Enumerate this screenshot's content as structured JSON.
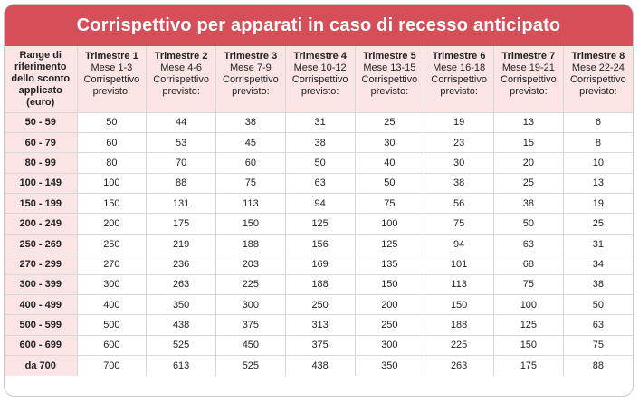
{
  "title": "Corrispettivo per apparati in caso di recesso anticipato",
  "range_header": [
    "Range di",
    "riferimento",
    "dello sconto",
    "applicato",
    "(euro)"
  ],
  "quarters": [
    {
      "name": "Trimestre 1",
      "months": "Mese 1-3",
      "l1": "Corrispettivo",
      "l2": "previsto:"
    },
    {
      "name": "Trimestre 2",
      "months": "Mese 4-6",
      "l1": "Corrispettivo",
      "l2": "previsto:"
    },
    {
      "name": "Trimestre 3",
      "months": "Mese 7-9",
      "l1": "Corrispettivo",
      "l2": "previsto:"
    },
    {
      "name": "Trimestre 4",
      "months": "Mese 10-12",
      "l1": "Corrispettivo",
      "l2": "previsto:"
    },
    {
      "name": "Trimestre 5",
      "months": "Mese 13-15",
      "l1": "Corrispettivo",
      "l2": "previsto:"
    },
    {
      "name": "Trimestre 6",
      "months": "Mese 16-18",
      "l1": "Corrispettivo",
      "l2": "previsto:"
    },
    {
      "name": "Trimestre 7",
      "months": "Mese 19-21",
      "l1": "Corrispettivo",
      "l2": "previsto:"
    },
    {
      "name": "Trimestre 8",
      "months": "Mese 22-24",
      "l1": "Corrispettivo",
      "l2": "previsto:"
    }
  ],
  "rows": [
    {
      "range": "50 - 59",
      "values": [
        "50",
        "44",
        "38",
        "31",
        "25",
        "19",
        "13",
        "6"
      ]
    },
    {
      "range": "60 - 79",
      "values": [
        "60",
        "53",
        "45",
        "38",
        "30",
        "23",
        "15",
        "8"
      ]
    },
    {
      "range": "80 - 99",
      "values": [
        "80",
        "70",
        "60",
        "50",
        "40",
        "30",
        "20",
        "10"
      ]
    },
    {
      "range": "100 - 149",
      "values": [
        "100",
        "88",
        "75",
        "63",
        "50",
        "38",
        "25",
        "13"
      ]
    },
    {
      "range": "150 - 199",
      "values": [
        "150",
        "131",
        "113",
        "94",
        "75",
        "56",
        "38",
        "19"
      ]
    },
    {
      "range": "200 - 249",
      "values": [
        "200",
        "175",
        "150",
        "125",
        "100",
        "75",
        "50",
        "25"
      ]
    },
    {
      "range": "250 - 269",
      "values": [
        "250",
        "219",
        "188",
        "156",
        "125",
        "94",
        "63",
        "31"
      ]
    },
    {
      "range": "270 - 299",
      "values": [
        "270",
        "236",
        "203",
        "169",
        "135",
        "101",
        "68",
        "34"
      ]
    },
    {
      "range": "300 - 399",
      "values": [
        "300",
        "263",
        "225",
        "188",
        "150",
        "113",
        "75",
        "38"
      ]
    },
    {
      "range": "400 - 499",
      "values": [
        "400",
        "350",
        "300",
        "250",
        "200",
        "150",
        "100",
        "50"
      ]
    },
    {
      "range": "500 - 599",
      "values": [
        "500",
        "438",
        "375",
        "313",
        "250",
        "188",
        "125",
        "63"
      ]
    },
    {
      "range": "600 - 699",
      "values": [
        "600",
        "525",
        "450",
        "375",
        "300",
        "225",
        "150",
        "75"
      ]
    },
    {
      "range": "da 700",
      "values": [
        "700",
        "613",
        "525",
        "438",
        "350",
        "263",
        "175",
        "88"
      ]
    }
  ]
}
